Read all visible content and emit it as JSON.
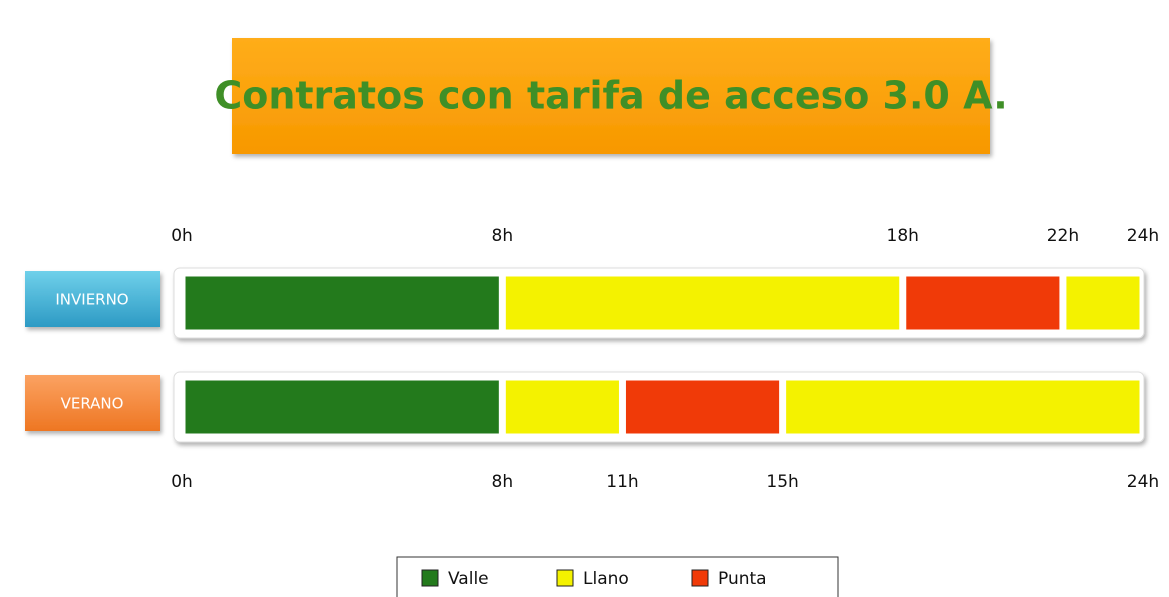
{
  "title": "Contratos con tarifa de acceso 3.0 A.",
  "axis": {
    "range": [
      0,
      24
    ]
  },
  "rows": [
    {
      "label": "INVIERNO",
      "ticks_side": "top",
      "ticks": [
        {
          "value": 0,
          "label": "0h"
        },
        {
          "value": 8,
          "label": "8h"
        },
        {
          "value": 18,
          "label": "18h"
        },
        {
          "value": 22,
          "label": "22h"
        },
        {
          "value": 24,
          "label": "24h"
        }
      ],
      "segments": [
        {
          "start": 0,
          "end": 8,
          "kind": "Valle"
        },
        {
          "start": 8,
          "end": 18,
          "kind": "Llano"
        },
        {
          "start": 18,
          "end": 22,
          "kind": "Punta"
        },
        {
          "start": 22,
          "end": 24,
          "kind": "Llano"
        }
      ]
    },
    {
      "label": "VERANO",
      "ticks_side": "bottom",
      "ticks": [
        {
          "value": 0,
          "label": "0h"
        },
        {
          "value": 8,
          "label": "8h"
        },
        {
          "value": 11,
          "label": "11h"
        },
        {
          "value": 15,
          "label": "15h"
        },
        {
          "value": 24,
          "label": "24h"
        }
      ],
      "segments": [
        {
          "start": 0,
          "end": 8,
          "kind": "Valle"
        },
        {
          "start": 8,
          "end": 11,
          "kind": "Llano"
        },
        {
          "start": 11,
          "end": 15,
          "kind": "Punta"
        },
        {
          "start": 15,
          "end": 24,
          "kind": "Llano"
        }
      ]
    }
  ],
  "legend": [
    {
      "label": "Valle",
      "color": "#237a1c"
    },
    {
      "label": "Llano",
      "color": "#f4f200"
    },
    {
      "label": "Punta",
      "color": "#f03a08"
    }
  ]
}
